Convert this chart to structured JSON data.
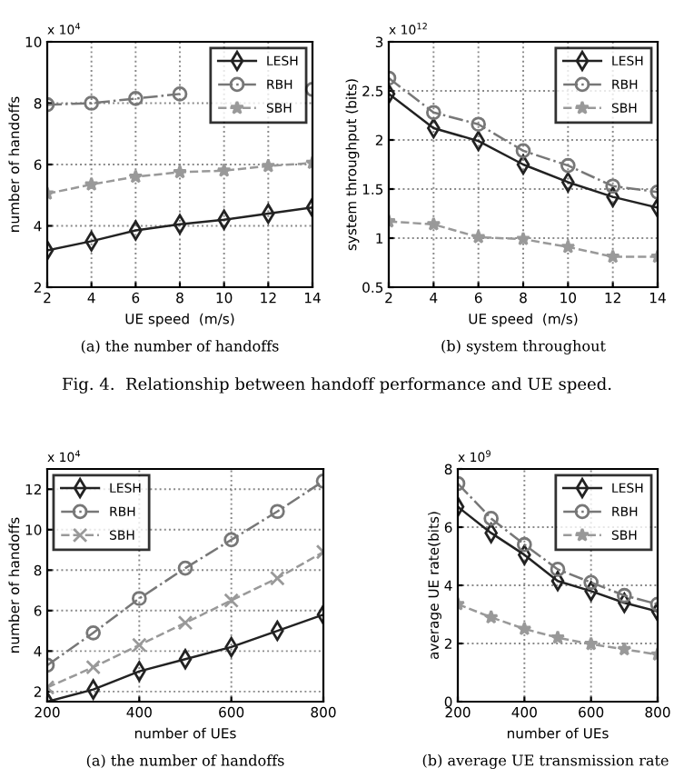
{
  "chart_data": [
    {
      "type": "line",
      "xlabel": "UE speed  (m/s)",
      "ylabel": "number of handoffs",
      "x": [
        2,
        4,
        6,
        8,
        10,
        12,
        14
      ],
      "xlim": [
        2,
        14
      ],
      "xticks": [
        2,
        4,
        6,
        8,
        10,
        12,
        14
      ],
      "ylim": [
        2,
        10
      ],
      "yticks": [
        2,
        4,
        6,
        8,
        10
      ],
      "grid": true,
      "legend": "top right",
      "annotations": [
        "x 10$^{4}$",
        "(a) the number of handoffs"
      ],
      "series": [
        {
          "name": "LESH",
          "color": "#222222",
          "marker": "diamond",
          "line_style": "solid",
          "values": [
            3.2,
            3.5,
            3.85,
            4.05,
            4.2,
            4.4,
            4.6
          ]
        },
        {
          "name": "RBH",
          "color": "#777777",
          "marker": "circle",
          "line_style": "dashdot",
          "values": [
            7.95,
            8.0,
            8.15,
            8.3,
            null,
            null,
            8.45
          ]
        },
        {
          "name": "SBH",
          "color": "#999999",
          "marker": "star",
          "line_style": "dashed",
          "values": [
            5.05,
            5.35,
            5.6,
            5.75,
            5.8,
            5.95,
            6.05
          ]
        }
      ]
    },
    {
      "type": "line",
      "xlabel": "UE speed  (m/s)",
      "ylabel": "system throughput (bits)",
      "x": [
        2,
        4,
        6,
        8,
        10,
        12,
        14
      ],
      "xlim": [
        2,
        14
      ],
      "xticks": [
        2,
        4,
        6,
        8,
        10,
        12,
        14
      ],
      "ylim": [
        0.5,
        3
      ],
      "yticks": [
        0.5,
        1,
        1.5,
        2,
        2.5,
        3
      ],
      "grid": true,
      "legend": "top right",
      "annotations": [
        "x 10$^{12}$",
        "(b) system throughout",
        "Fig. 4.  Relationship between handoff performance and UE speed."
      ],
      "series": [
        {
          "name": "LESH",
          "color": "#222222",
          "marker": "diamond",
          "line_style": "solid",
          "values": [
            2.47,
            2.12,
            1.99,
            1.75,
            1.57,
            1.42,
            1.31
          ]
        },
        {
          "name": "RBH",
          "color": "#777777",
          "marker": "circle",
          "line_style": "dashdot",
          "values": [
            2.63,
            2.28,
            2.16,
            1.89,
            1.74,
            1.53,
            1.47
          ]
        },
        {
          "name": "SBH",
          "color": "#999999",
          "marker": "star",
          "line_style": "dashed",
          "values": [
            1.17,
            1.14,
            1.01,
            0.99,
            0.91,
            0.81,
            0.81
          ]
        }
      ]
    },
    {
      "type": "line",
      "xlabel": "number of UEs",
      "ylabel": "number of handoffs",
      "x": [
        200,
        300,
        400,
        500,
        600,
        700,
        800
      ],
      "xlim": [
        200,
        800
      ],
      "xticks": [
        200,
        400,
        600,
        800
      ],
      "ylim": [
        1.5,
        13
      ],
      "yticks": [
        2,
        4,
        6,
        8,
        10,
        12
      ],
      "grid": true,
      "legend": "top left",
      "annotations": [
        "x 10$^{4}$",
        "(a) the number of handoffs"
      ],
      "series": [
        {
          "name": "LESH",
          "color": "#222222",
          "marker": "diamond",
          "line_style": "solid",
          "values": [
            1.5,
            2.1,
            3.0,
            3.6,
            4.2,
            5.0,
            5.8
          ]
        },
        {
          "name": "RBH",
          "color": "#777777",
          "marker": "circle",
          "line_style": "dashdot",
          "values": [
            3.3,
            4.9,
            6.6,
            8.1,
            9.5,
            10.9,
            12.4
          ]
        },
        {
          "name": "SBH",
          "color": "#999999",
          "marker": "cross",
          "line_style": "dashed",
          "values": [
            2.2,
            3.2,
            4.3,
            5.4,
            6.5,
            7.6,
            8.9
          ]
        }
      ]
    },
    {
      "type": "line",
      "xlabel": "number of UEs",
      "ylabel": "average UE rate(bits)",
      "x": [
        200,
        300,
        400,
        500,
        600,
        700,
        800
      ],
      "xlim": [
        200,
        800
      ],
      "xticks": [
        200,
        400,
        600,
        800
      ],
      "ylim": [
        0,
        8
      ],
      "yticks": [
        0,
        2,
        4,
        6,
        8
      ],
      "grid": true,
      "legend": "top right",
      "annotations": [
        "x 10$^{9}$",
        "(b) average UE transmission rate"
      ],
      "series": [
        {
          "name": "LESH",
          "color": "#222222",
          "marker": "diamond",
          "line_style": "solid",
          "values": [
            6.7,
            5.8,
            5.05,
            4.15,
            3.8,
            3.4,
            3.1
          ]
        },
        {
          "name": "RBH",
          "color": "#777777",
          "marker": "circle",
          "line_style": "dashdot",
          "values": [
            7.5,
            6.3,
            5.4,
            4.55,
            4.1,
            3.65,
            3.35
          ]
        },
        {
          "name": "SBH",
          "color": "#999999",
          "marker": "star",
          "line_style": "dashed",
          "values": [
            3.35,
            2.9,
            2.5,
            2.2,
            1.98,
            1.8,
            1.62
          ]
        }
      ]
    }
  ]
}
